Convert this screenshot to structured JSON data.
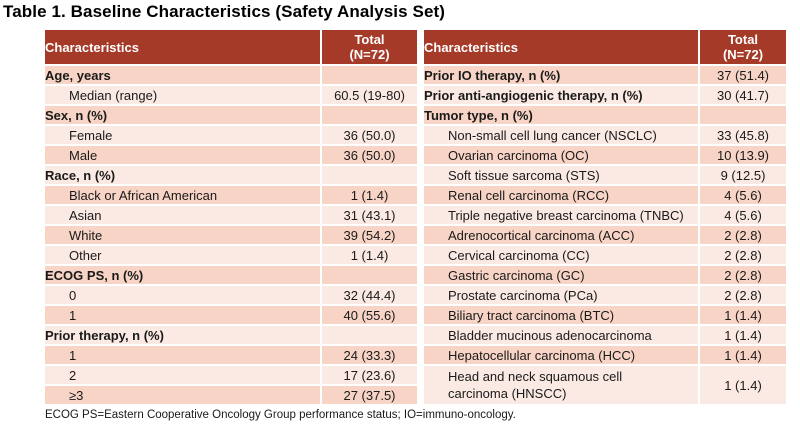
{
  "title": "Table 1. Baseline Characteristics (Safety Analysis Set)",
  "footnote": "ECOG PS=Eastern Cooperative Oncology Group performance status; IO=immuno-oncology.",
  "colors": {
    "header_bg": "#A63A28",
    "header_text": "#FFFFFF",
    "band_dark": "#F7D4C6",
    "band_light": "#FBEAE3",
    "grid_line": "#FFFFFF",
    "body_text": "#1A1A1A",
    "title_text": "#000000"
  },
  "columns": {
    "characteristics": "Characteristics",
    "total": "Total\n(N=72)"
  },
  "left_table": {
    "rows": [
      {
        "label": "Age, years",
        "value": "",
        "style": "category"
      },
      {
        "label": "Median (range)",
        "value": "60.5 (19-80)",
        "style": "sub"
      },
      {
        "label": "Sex, n (%)",
        "value": "",
        "style": "category"
      },
      {
        "label": "Female",
        "value": "36 (50.0)",
        "style": "sub"
      },
      {
        "label": "Male",
        "value": "36 (50.0)",
        "style": "sub"
      },
      {
        "label": "Race, n (%)",
        "value": "",
        "style": "category"
      },
      {
        "label": "Black or African American",
        "value": "1 (1.4)",
        "style": "sub"
      },
      {
        "label": "Asian",
        "value": "31 (43.1)",
        "style": "sub"
      },
      {
        "label": "White",
        "value": "39 (54.2)",
        "style": "sub"
      },
      {
        "label": "Other",
        "value": "1 (1.4)",
        "style": "sub"
      },
      {
        "label": "ECOG PS, n (%)",
        "value": "",
        "style": "category"
      },
      {
        "label": "0",
        "value": "32 (44.4)",
        "style": "sub"
      },
      {
        "label": "1",
        "value": "40 (55.6)",
        "style": "sub"
      },
      {
        "label": "Prior therapy, n (%)",
        "value": "",
        "style": "category"
      },
      {
        "label": "1",
        "value": "24 (33.3)",
        "style": "sub"
      },
      {
        "label": "2",
        "value": "17 (23.6)",
        "style": "sub"
      },
      {
        "label": "≥3",
        "value": "27 (37.5)",
        "style": "sub"
      }
    ]
  },
  "right_table": {
    "rows": [
      {
        "label": "Prior IO therapy, n (%)",
        "value": "37 (51.4)",
        "style": "category"
      },
      {
        "label": "Prior anti-angiogenic therapy, n (%)",
        "value": "30 (41.7)",
        "style": "category"
      },
      {
        "label": "Tumor type, n (%)",
        "value": "",
        "style": "category"
      },
      {
        "label": "Non-small cell lung cancer (NSCLC)",
        "value": "33 (45.8)",
        "style": "sub"
      },
      {
        "label": "Ovarian carcinoma (OC)",
        "value": "10 (13.9)",
        "style": "sub"
      },
      {
        "label": "Soft tissue sarcoma (STS)",
        "value": "9 (12.5)",
        "style": "sub"
      },
      {
        "label": "Renal cell carcinoma (RCC)",
        "value": "4 (5.6)",
        "style": "sub"
      },
      {
        "label": "Triple negative breast carcinoma (TNBC)",
        "value": "4 (5.6)",
        "style": "sub"
      },
      {
        "label": "Adrenocortical carcinoma (ACC)",
        "value": "2 (2.8)",
        "style": "sub"
      },
      {
        "label": "Cervical carcinoma (CC)",
        "value": "2 (2.8)",
        "style": "sub"
      },
      {
        "label": "Gastric carcinoma (GC)",
        "value": "2 (2.8)",
        "style": "sub"
      },
      {
        "label": "Prostate carcinoma (PCa)",
        "value": "2 (2.8)",
        "style": "sub"
      },
      {
        "label": "Biliary tract carcinoma (BTC)",
        "value": "1 (1.4)",
        "style": "sub"
      },
      {
        "label": "Bladder mucinous adenocarcinoma",
        "value": "1 (1.4)",
        "style": "sub"
      },
      {
        "label": "Hepatocellular carcinoma (HCC)",
        "value": "1 (1.4)",
        "style": "sub"
      },
      {
        "label": "Head and neck squamous cell\ncarcinoma (HNSCC)",
        "value": "1 (1.4)",
        "style": "sub",
        "tall": true
      }
    ]
  }
}
